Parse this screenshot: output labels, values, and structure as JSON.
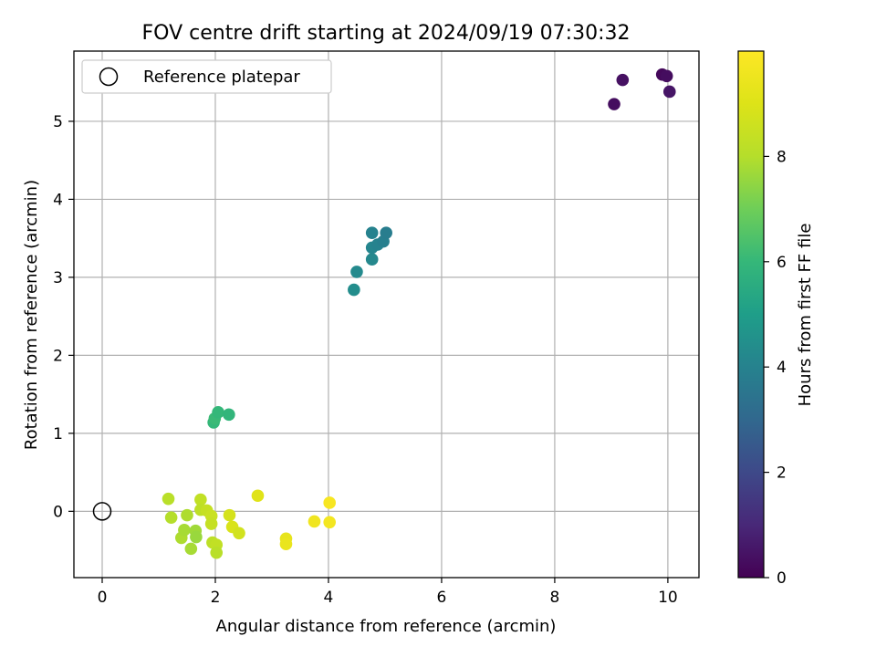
{
  "chart_data": {
    "type": "scatter",
    "title": "FOV centre drift starting at 2024/09/19 07:30:32",
    "xlabel": "Angular distance from reference (arcmin)",
    "ylabel": "Rotation from reference (arcmin)",
    "xlim": [
      -0.5,
      10.55
    ],
    "ylim": [
      -0.85,
      5.9
    ],
    "xticks": [
      0,
      2,
      4,
      6,
      8,
      10
    ],
    "yticks": [
      0,
      1,
      2,
      3,
      4,
      5
    ],
    "grid": true,
    "legend": {
      "placement": "top-left",
      "entries": [
        "Reference platepar"
      ]
    },
    "reference_point": {
      "x": 0,
      "y": 0
    },
    "colorbar": {
      "label": "Hours from first FF file",
      "colormap": "viridis",
      "range": [
        0,
        10
      ],
      "ticks": [
        0,
        2,
        4,
        6,
        8
      ]
    },
    "points": [
      {
        "x": 9.05,
        "y": 5.22,
        "c": 0.3
      },
      {
        "x": 9.2,
        "y": 5.53,
        "c": 0.4
      },
      {
        "x": 9.9,
        "y": 5.6,
        "c": 0.2
      },
      {
        "x": 9.98,
        "y": 5.58,
        "c": 0.3
      },
      {
        "x": 10.03,
        "y": 5.38,
        "c": 0.5
      },
      {
        "x": 4.45,
        "y": 2.84,
        "c": 4.4
      },
      {
        "x": 4.5,
        "y": 3.07,
        "c": 4.3
      },
      {
        "x": 4.77,
        "y": 3.23,
        "c": 4.2
      },
      {
        "x": 4.77,
        "y": 3.38,
        "c": 4.1
      },
      {
        "x": 4.87,
        "y": 3.42,
        "c": 4.0
      },
      {
        "x": 4.97,
        "y": 3.46,
        "c": 3.9
      },
      {
        "x": 4.77,
        "y": 3.57,
        "c": 4.0
      },
      {
        "x": 5.02,
        "y": 3.57,
        "c": 3.8
      },
      {
        "x": 1.97,
        "y": 1.14,
        "c": 6.0
      },
      {
        "x": 1.99,
        "y": 1.19,
        "c": 6.1
      },
      {
        "x": 2.05,
        "y": 1.27,
        "c": 6.0
      },
      {
        "x": 2.24,
        "y": 1.24,
        "c": 5.9
      },
      {
        "x": 1.17,
        "y": 0.16,
        "c": 8.1
      },
      {
        "x": 1.22,
        "y": -0.08,
        "c": 8.0
      },
      {
        "x": 1.4,
        "y": -0.34,
        "c": 7.9
      },
      {
        "x": 1.45,
        "y": -0.24,
        "c": 7.8
      },
      {
        "x": 1.5,
        "y": -0.05,
        "c": 7.9
      },
      {
        "x": 1.57,
        "y": -0.48,
        "c": 7.8
      },
      {
        "x": 1.65,
        "y": -0.25,
        "c": 7.7
      },
      {
        "x": 1.66,
        "y": -0.33,
        "c": 7.6
      },
      {
        "x": 1.74,
        "y": 0.15,
        "c": 8.3
      },
      {
        "x": 1.74,
        "y": 0.02,
        "c": 8.2
      },
      {
        "x": 1.85,
        "y": 0.01,
        "c": 8.4
      },
      {
        "x": 1.93,
        "y": -0.06,
        "c": 8.5
      },
      {
        "x": 1.93,
        "y": -0.16,
        "c": 8.4
      },
      {
        "x": 1.95,
        "y": -0.4,
        "c": 8.2
      },
      {
        "x": 2.02,
        "y": -0.43,
        "c": 8.3
      },
      {
        "x": 2.02,
        "y": -0.53,
        "c": 8.1
      },
      {
        "x": 2.25,
        "y": -0.05,
        "c": 8.8
      },
      {
        "x": 2.3,
        "y": -0.2,
        "c": 8.9
      },
      {
        "x": 2.42,
        "y": -0.28,
        "c": 8.7
      },
      {
        "x": 2.75,
        "y": 0.2,
        "c": 9.1
      },
      {
        "x": 3.25,
        "y": -0.35,
        "c": 9.3
      },
      {
        "x": 3.25,
        "y": -0.42,
        "c": 9.4
      },
      {
        "x": 3.75,
        "y": -0.13,
        "c": 9.6
      },
      {
        "x": 4.02,
        "y": 0.11,
        "c": 9.8
      },
      {
        "x": 4.02,
        "y": -0.14,
        "c": 9.7
      }
    ]
  }
}
